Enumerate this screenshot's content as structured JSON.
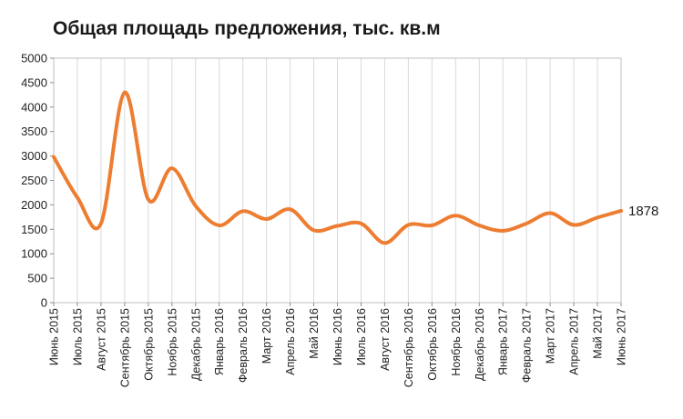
{
  "chart_data": {
    "type": "line",
    "title": "Общая площадь предложения, тыс. кв.м",
    "xlabel": "",
    "ylabel": "",
    "ylim": [
      0,
      5000
    ],
    "yticks": [
      "0",
      "500",
      "1000",
      "1500",
      "2000",
      "2500",
      "3000",
      "3500",
      "4000",
      "4500",
      "5000"
    ],
    "grid": "vertical",
    "line_color": "#ed7d31",
    "categories": [
      "Июнь 2015",
      "Июль 2015",
      "Август 2015",
      "Сентябрь 2015",
      "Октябрь 2015",
      "Ноябрь 2015",
      "Декабрь 2015",
      "Январь 2016",
      "Февраль 2016",
      "Март 2016",
      "Апрель 2016",
      "Май 2016",
      "Июнь 2016",
      "Июль 2016",
      "Август 2016",
      "Сентябрь 2016",
      "Октябрь 2016",
      "Ноябрь 2016",
      "Декабрь 2016",
      "Январь 2017",
      "Февраль 2017",
      "Март 2017",
      "Апрель 2017",
      "Май 2017",
      "Июнь 2017"
    ],
    "series": [
      {
        "values": [
          2980,
          2150,
          1620,
          4300,
          2110,
          2750,
          1980,
          1580,
          1870,
          1710,
          1910,
          1480,
          1570,
          1620,
          1220,
          1590,
          1580,
          1780,
          1580,
          1470,
          1620,
          1830,
          1590,
          1740,
          1878
        ],
        "data_label": "1878"
      }
    ]
  }
}
